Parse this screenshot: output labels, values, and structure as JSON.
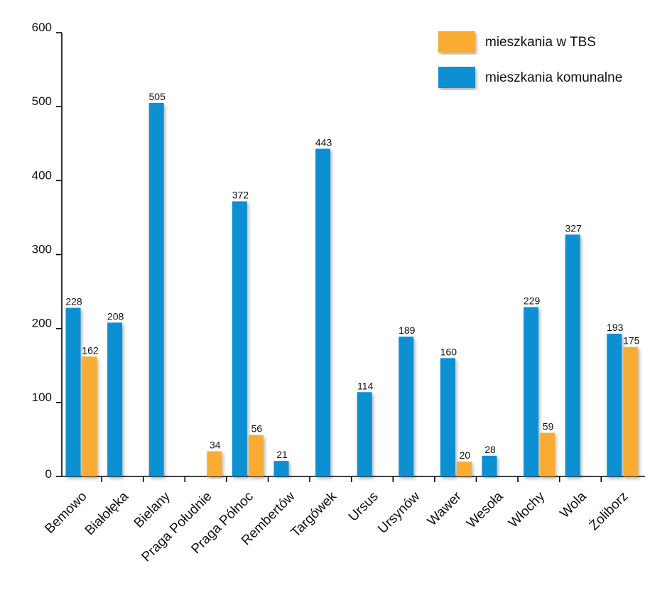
{
  "chart_data": {
    "type": "bar",
    "categories": [
      "Bemowo",
      "Białołęka",
      "Bielany",
      "Praga Południe",
      "Praga Północ",
      "Rembertów",
      "Targówek",
      "Ursus",
      "Ursynów",
      "Wawer",
      "Wesoła",
      "Włochy",
      "Wola",
      "Żoliborz"
    ],
    "series": [
      {
        "name": "mieszkania komunalne",
        "color": "#0e90d2",
        "values": [
          228,
          208,
          505,
          null,
          372,
          21,
          443,
          114,
          189,
          160,
          28,
          229,
          327,
          193
        ]
      },
      {
        "name": "mieszkania w TBS",
        "color": "#f9ac31",
        "values": [
          162,
          null,
          null,
          34,
          56,
          null,
          null,
          null,
          null,
          20,
          null,
          59,
          null,
          175
        ]
      }
    ],
    "ylim": [
      0,
      600
    ],
    "yticks": [
      "0",
      "100",
      "200",
      "300",
      "400",
      "500",
      "600"
    ],
    "legend": {
      "position": "top-right",
      "entries": [
        {
          "label": "mieszkania w TBS",
          "color": "#f9ac31"
        },
        {
          "label": "mieszkania komunalne",
          "color": "#0e90d2"
        }
      ]
    },
    "grid": false
  }
}
